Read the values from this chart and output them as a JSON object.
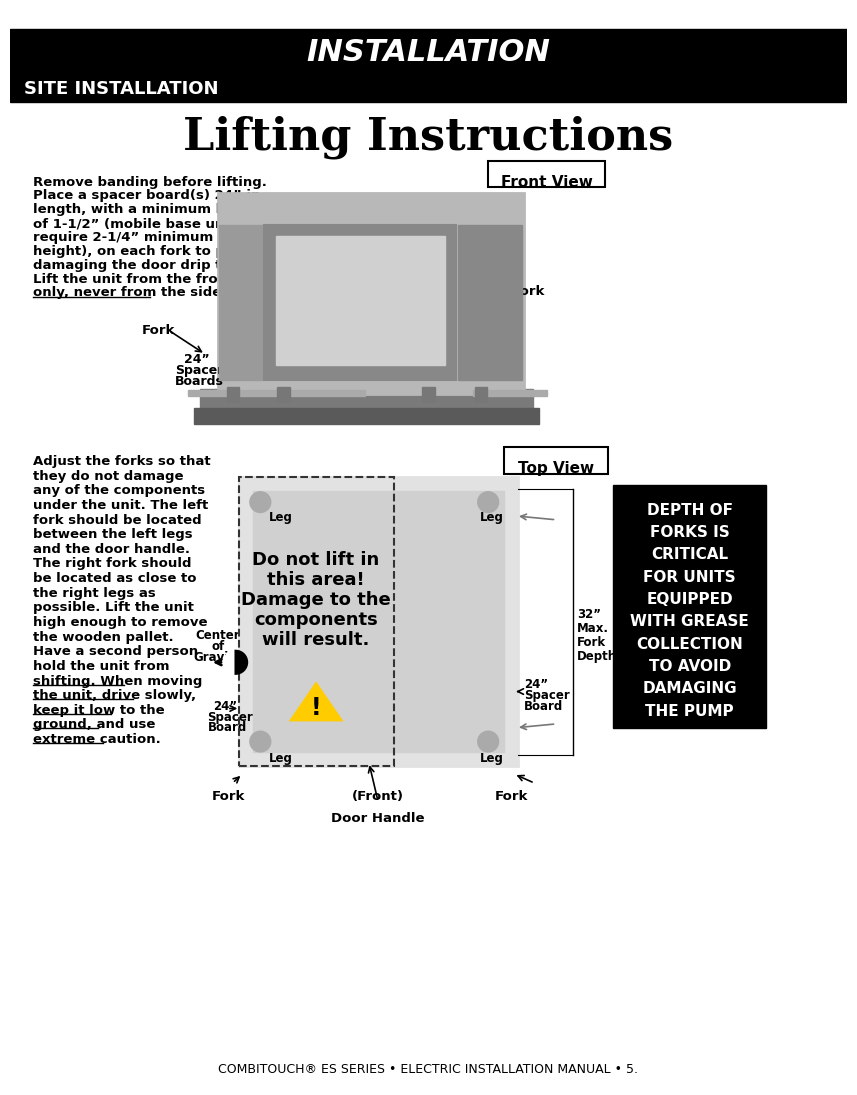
{
  "title_bar_text": "INSTALLATION",
  "subtitle_bar_text": "SITE INSTALLATION",
  "page_title": "Lifting Instructions",
  "footer_text": "COMBITOUCH® ES SERIES • ELECTRIC INSTALLATION MANUAL • 5.",
  "left_paragraph": "Remove banding before lifting.\nPlace a spacer board(s) 24” in\nlength, with a minimum height\nof 1-1/2” (mobile base units\nrequire 2-1/4” minimum\nheight), on each fork to prevent\ndamaging the door drip tray.\nLift the unit from the front\nonly, never from the side.",
  "left_paragraph2": "Adjust the forks so that\nthey do not damage\nany of the components\nunder the unit. The left\nfork should be located\nbetween the left legs\nand the door handle.\nThe right fork should\nbe located as close to\nthe right legs as\npossible. Lift the unit\nhigh enough to remove\nthe wooden pallet.\nHave a second person\nhold the unit from\nshifting. When moving\nthe unit, drive slowly,\nkeep it low to the\nground, and use\nextreme caution.",
  "front_view_label": "Front View",
  "top_view_label": "Top View",
  "warning_box_text": "DEPTH OF\nFORKS IS\nCRITICAL\nFOR UNITS\nEQUIPPED\nWITH GREASE\nCOLLECTION\nTO AVOID\nDAMAGING\nTHE PUMP",
  "do_not_lift_lines": [
    "Do not lift in",
    "this area!",
    "Damage to the",
    "components",
    "will result."
  ],
  "bg_color": "#ffffff",
  "header_bg": "#000000",
  "header_text_color": "#ffffff",
  "warning_bg": "#000000",
  "warning_text_color": "#ffffff"
}
